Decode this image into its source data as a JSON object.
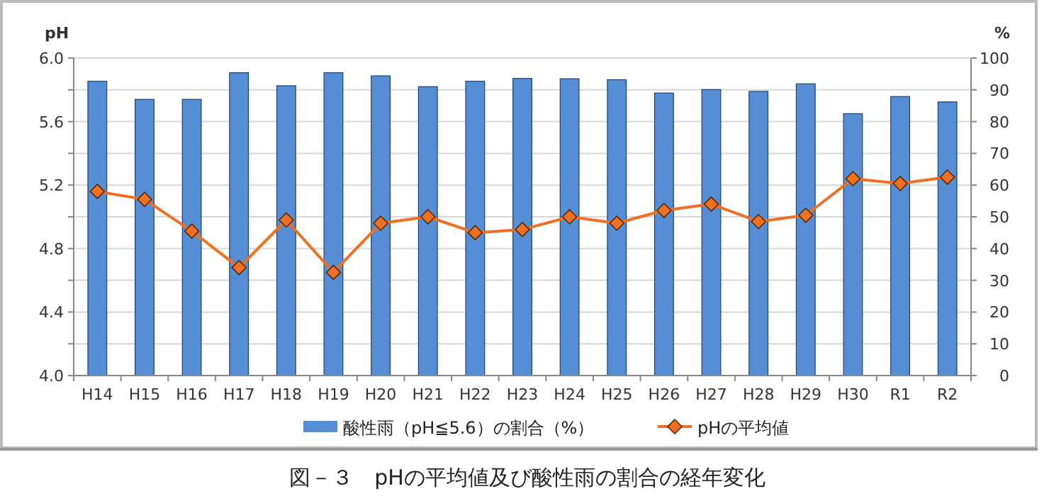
{
  "chart_data": {
    "type": "bar",
    "title": "図－３　pHの平均値及び酸性雨の割合の経年変化",
    "ylabel": "pH",
    "y2label": "%",
    "categories": [
      "H14",
      "H15",
      "H16",
      "H17",
      "H18",
      "H19",
      "H20",
      "H21",
      "H22",
      "H23",
      "H24",
      "H25",
      "H26",
      "H27",
      "H28",
      "H29",
      "H30",
      "R1",
      "R2"
    ],
    "series": [
      {
        "name": "酸性雨（pH≦5.6）の割合（%）",
        "axis": "y2",
        "color": "#558ed5",
        "values": [
          92.7,
          87.0,
          87.0,
          95.4,
          91.3,
          95.4,
          94.4,
          91.0,
          92.7,
          93.6,
          93.5,
          93.2,
          89.0,
          90.1,
          89.5,
          91.9,
          82.5,
          87.9,
          86.2
        ]
      },
      {
        "name": "pHの平均値",
        "type": "line",
        "color": "#f07023",
        "marker": "diamond",
        "values": [
          5.16,
          5.11,
          4.91,
          4.68,
          4.98,
          4.65,
          4.96,
          5.0,
          4.9,
          4.92,
          5.0,
          4.96,
          5.04,
          5.08,
          4.97,
          5.01,
          5.24,
          5.21,
          5.25
        ]
      }
    ],
    "ylim": [
      4.0,
      6.0
    ],
    "yticks": [
      {
        "value": 4.0,
        "label": "4.0"
      },
      {
        "value": 4.2,
        "label": null
      },
      {
        "value": 4.4,
        "label": "4.4"
      },
      {
        "value": 4.6,
        "label": null
      },
      {
        "value": 4.8,
        "label": "4.8"
      },
      {
        "value": 5.0,
        "label": null
      },
      {
        "value": 5.2,
        "label": "5.2"
      },
      {
        "value": 5.4,
        "label": null
      },
      {
        "value": 5.6,
        "label": "5.6"
      },
      {
        "value": 5.8,
        "label": null
      },
      {
        "value": 6.0,
        "label": "6.0"
      }
    ],
    "y2lim": [
      0,
      100
    ],
    "y2ticks": [
      0,
      10,
      20,
      30,
      40,
      50,
      60,
      70,
      80,
      90,
      100
    ],
    "grid": "y",
    "legend": "bottom"
  }
}
